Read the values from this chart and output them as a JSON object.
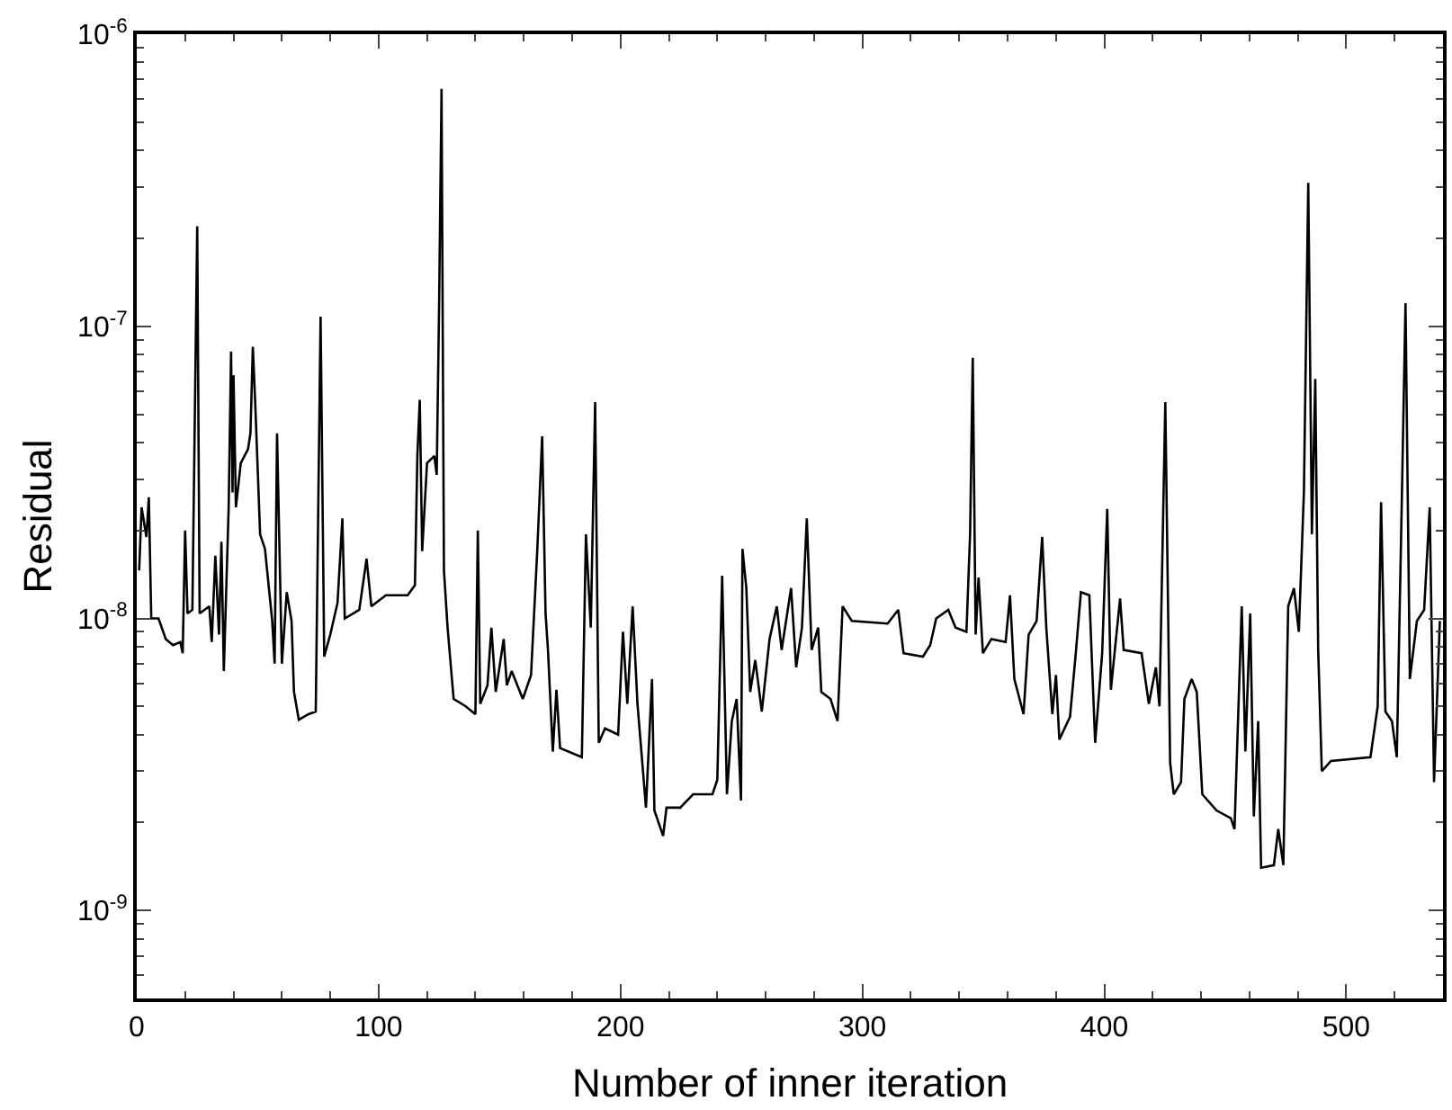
{
  "chart_data": {
    "type": "line",
    "xlabel": "Number of inner iteration",
    "ylabel": "Residual",
    "log": "y",
    "marker": "none",
    "line_style": "solid",
    "xlim": [
      0,
      540
    ],
    "xticks": [
      0,
      100,
      200,
      300,
      400,
      500
    ],
    "ylim": [
      5e-10,
      1e-06
    ],
    "yticks": [
      {
        "value": 1e-09,
        "label": "10$^{-9}$"
      },
      {
        "value": 1e-08,
        "label": "10$^{-8}$"
      },
      {
        "value": 1e-07,
        "label": "10$^{-7}$"
      },
      {
        "value": 1e-06,
        "label": "10$^{-6}$"
      }
    ],
    "series": [
      {
        "color": "#000000",
        "x": [
          1,
          2,
          4,
          5,
          6,
          9,
          12,
          15,
          18,
          19,
          20,
          21,
          23,
          25,
          26,
          30,
          31,
          32.5,
          34,
          35,
          36,
          38,
          39,
          39.6,
          40,
          41,
          43,
          46,
          47,
          48,
          49,
          51,
          53,
          56,
          57,
          58,
          60,
          62,
          64,
          65,
          67,
          71,
          74,
          76,
          77.5,
          80,
          83,
          85,
          86,
          92,
          95,
          97,
          103,
          112,
          115,
          116,
          117,
          118,
          120,
          123,
          124,
          125,
          126,
          127,
          128.5,
          131,
          136,
          140,
          141,
          142,
          145,
          146.6,
          148.4,
          151.7,
          153,
          155,
          159.6,
          163,
          165.6,
          167.6,
          169,
          170,
          172,
          173.5,
          175,
          184,
          185.7,
          187.7,
          189.5,
          191,
          193.6,
          199,
          201,
          202.8,
          205,
          207,
          210.5,
          213,
          214,
          217.6,
          219,
          224.7,
          230,
          238,
          240,
          242,
          244,
          246,
          248,
          249.8,
          250.4,
          252,
          253.6,
          255.7,
          258.4,
          261.6,
          264.6,
          266.6,
          270.5,
          272.6,
          275,
          277,
          279,
          281.7,
          283,
          286.8,
          289.7,
          291.8,
          295.6,
          310.4,
          314.8,
          317,
          325,
          328,
          330.5,
          335.5,
          338.5,
          343,
          344.5,
          345.6,
          346.8,
          348,
          349.8,
          353.3,
          359.2,
          361,
          362.8,
          366.6,
          368.7,
          372,
          374.3,
          376,
          378.5,
          380,
          381.4,
          385.8,
          388.2,
          390.3,
          393.8,
          396.2,
          399.1,
          401.2,
          402.7,
          406.5,
          408,
          415.4,
          418.4,
          421.3,
          422.8,
          425.2,
          427.2,
          428.7,
          431.7,
          433.1,
          436.1,
          438.2,
          440.5,
          446.4,
          452.3,
          453.8,
          456.8,
          458.3,
          460.3,
          461.8,
          463.6,
          464.8,
          470.1,
          471.9,
          474,
          476,
          478.4,
          480.4,
          482.5,
          484.3,
          485.8,
          487.2,
          488.4,
          489.9,
          493.7,
          510,
          513,
          514.4,
          516.2,
          518.9,
          520.9,
          523,
          524.5,
          526.3,
          529.2,
          532.2,
          534.5,
          536.3,
          538.7
        ],
        "values": [
          1.46e-08,
          2.4e-08,
          1.9e-08,
          2.6e-08,
          1e-08,
          1e-08,
          8.5e-09,
          8.1e-09,
          8.3e-09,
          7.6e-09,
          2e-08,
          1.04e-08,
          1.07e-08,
          2.2e-07,
          1.04e-08,
          1.1e-08,
          8.3e-09,
          1.64e-08,
          8.8e-09,
          1.83e-08,
          6.6e-09,
          2.4e-08,
          8.2e-08,
          2.7e-08,
          6.8e-08,
          2.4e-08,
          3.4e-08,
          3.8e-08,
          4.3e-08,
          8.5e-08,
          5.4e-08,
          1.94e-08,
          1.73e-08,
          9.8e-09,
          7e-09,
          4.3e-08,
          7e-09,
          1.23e-08,
          9.8e-09,
          5.6e-09,
          4.5e-09,
          4.7e-09,
          4.8e-09,
          1.08e-07,
          7.4e-09,
          8.8e-09,
          1.13e-08,
          2.2e-08,
          1e-08,
          1.07e-08,
          1.6e-08,
          1.1e-08,
          1.2e-08,
          1.2e-08,
          1.3e-08,
          3.6e-08,
          5.6e-08,
          1.7e-08,
          3.4e-08,
          3.6e-08,
          3.1e-08,
          1.2e-07,
          6.5e-07,
          1.46e-08,
          9.3e-09,
          5.3e-09,
          5e-09,
          4.7e-09,
          2e-08,
          5.1e-09,
          5.9e-09,
          9.3e-09,
          5.6e-09,
          8.5e-09,
          5.9e-09,
          6.6e-09,
          5.3e-09,
          6.4e-09,
          1.73e-08,
          4.2e-08,
          1.04e-08,
          7.8e-09,
          3.5e-09,
          5.7e-09,
          3.6e-09,
          3.35e-09,
          1.94e-08,
          9.3e-09,
          5.5e-08,
          3.75e-09,
          4.2e-09,
          4e-09,
          9e-09,
          5.1e-09,
          1.1e-08,
          5.1e-09,
          2.25e-09,
          6.2e-09,
          2.2e-09,
          1.8e-09,
          2.25e-09,
          2.25e-09,
          2.5e-09,
          2.5e-09,
          2.8e-09,
          1.4e-08,
          2.5e-09,
          4.45e-09,
          5.3e-09,
          2.38e-09,
          1.73e-08,
          1.27e-08,
          5.6e-09,
          7.2e-09,
          4.8e-09,
          8.5e-09,
          1.1e-08,
          7.8e-09,
          1.27e-08,
          6.8e-09,
          9.3e-09,
          2.2e-08,
          7.8e-09,
          9.3e-09,
          5.6e-09,
          5.3e-09,
          4.45e-09,
          1.1e-08,
          9.8e-09,
          9.6e-09,
          1.07e-08,
          7.6e-09,
          7.4e-09,
          8.1e-09,
          1e-08,
          1.07e-08,
          9.3e-09,
          9e-09,
          1.94e-08,
          7.8e-08,
          8.8e-09,
          1.38e-08,
          7.6e-09,
          8.5e-09,
          8.3e-09,
          1.2e-08,
          6.2e-09,
          4.7e-09,
          8.8e-09,
          9.8e-09,
          1.9e-08,
          9.3e-09,
          4.7e-09,
          6.4e-09,
          3.85e-09,
          4.6e-09,
          7.6e-09,
          1.23e-08,
          1.2e-08,
          3.75e-09,
          7.6e-09,
          2.37e-08,
          5.7e-09,
          1.17e-08,
          7.8e-09,
          7.6e-09,
          5.1e-09,
          6.8e-09,
          5e-09,
          5.5e-08,
          3.2e-09,
          2.5e-09,
          2.75e-09,
          5.3e-09,
          6.2e-09,
          5.6e-09,
          2.5e-09,
          2.2e-09,
          2.07e-09,
          1.9e-09,
          1.1e-08,
          3.5e-09,
          1.04e-08,
          2.1e-09,
          4.45e-09,
          1.4e-09,
          1.43e-09,
          1.9e-09,
          1.43e-09,
          1.1e-08,
          1.27e-08,
          9e-09,
          2.7e-08,
          3.1e-07,
          1.94e-08,
          6.6e-08,
          7.8e-09,
          3e-09,
          3.25e-09,
          3.35e-09,
          5e-09,
          2.5e-08,
          4.8e-09,
          4.45e-09,
          3.35e-09,
          2.6e-08,
          1.2e-07,
          6.2e-09,
          9.8e-09,
          1.07e-08,
          2.4e-08,
          2.75e-09,
          9.8e-09
        ]
      }
    ]
  }
}
